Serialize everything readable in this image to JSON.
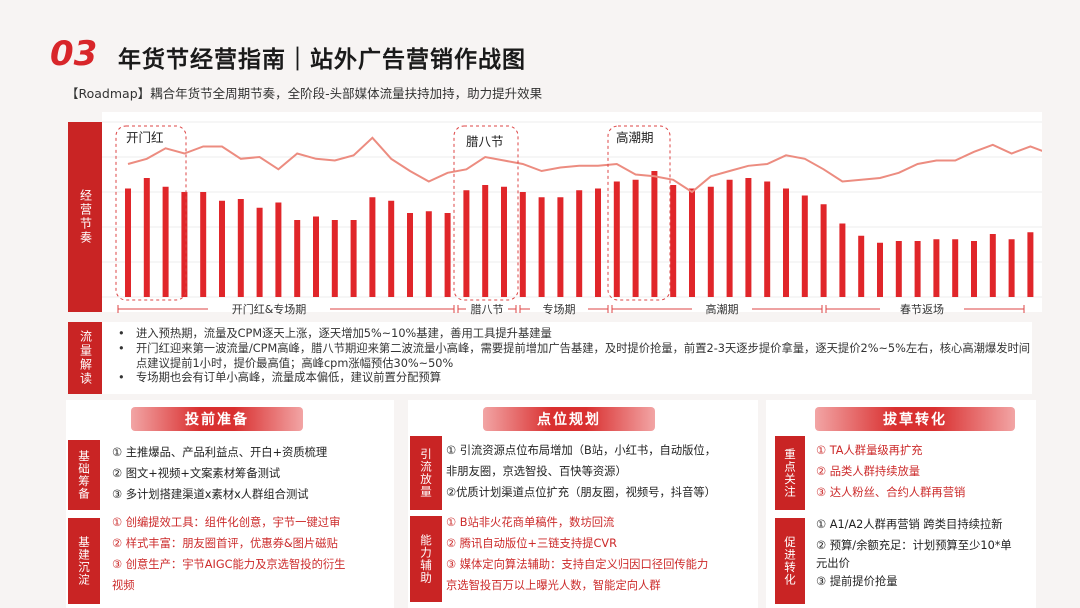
{
  "header": {
    "number": "03",
    "title": "年货节经营指南｜站外广告营销作战图",
    "subtitle": "【Roadmap】耦合年货节全周期节奏，全阶段-头部媒体流量扶持加持，助力提升效果"
  },
  "chart": {
    "side_label": "经营节奏",
    "highlights": [
      "开门红",
      "腊八节",
      "高潮期"
    ],
    "phases": [
      "开门红&专场期",
      "腊八节",
      "专场期",
      "高潮期",
      "春节返场"
    ]
  },
  "chart_data": {
    "type": "bar",
    "bar_color": "#e0262a",
    "line_color": "#ec8c80",
    "values": [
      62,
      68,
      63,
      60,
      60,
      55,
      56,
      51,
      54,
      44,
      46,
      44,
      44,
      57,
      55,
      48,
      49,
      48,
      61,
      64,
      63,
      60,
      57,
      57,
      61,
      62,
      66,
      67,
      72,
      64,
      62,
      63,
      67,
      68,
      66,
      62,
      58,
      53,
      42,
      35,
      31,
      32,
      32,
      33,
      33,
      32,
      36,
      33,
      37,
      42
    ],
    "line": [
      76,
      79,
      85,
      82,
      86,
      86,
      79,
      80,
      73,
      82,
      79,
      78,
      81,
      91,
      79,
      72,
      66,
      71,
      73,
      80,
      78,
      76,
      72,
      74,
      75,
      75,
      76,
      70,
      69,
      67,
      60,
      69,
      72,
      75,
      76,
      81,
      79,
      73,
      66,
      67,
      68,
      71,
      76,
      78,
      78,
      83,
      87,
      82,
      86,
      82
    ],
    "ylim": [
      0,
      100
    ]
  },
  "interpretation": {
    "side_label": "流量解读",
    "bullets": [
      "进入预热期，流量及CPM逐天上涨，逐天增加5%~10%基建，善用工具提升基建量",
      "开门红迎来第一波流量/CPM高峰，腊八节期迎来第二波流量小高峰，需要提前增加广告基建，及时提价抢量，前置2-3天逐步提价拿量，逐天提价2%~5%左右，核心高潮爆发时间点建议提前1小时，提价最高值；高峰cpm涨幅预估30%~50%",
      "专场期也会有订单小高峰，流量成本偏低，建议前置分配预算"
    ]
  },
  "panels": [
    {
      "title": "投前准备",
      "groups": [
        {
          "side": "基础筹备",
          "red": false,
          "items": [
            "① 主推爆品、产品利益点、开白+资质梳理",
            "② 图文+视频+文案素材筹备测试",
            "③ 多计划搭建渠道x素材x人群组合测试"
          ]
        },
        {
          "side": "基建沉淀",
          "red": true,
          "items": [
            "①  创编提效工具：组件化创意，宇节一键过审",
            "②  样式丰富：朋友圈首评，优惠券&图片磁贴",
            "③  创意生产：宇节AIGC能力及京选智投的衍生",
            "视频"
          ]
        }
      ]
    },
    {
      "title": "点位规划",
      "groups": [
        {
          "side": "引流放量",
          "red": false,
          "items": [
            "① 引流资源点位布局增加（B站，小红书，自动版位，",
            "非朋友圈，京选智投、百快等资源）",
            "②优质计划渠道点位扩充（朋友圈，视频号，抖音等）"
          ]
        },
        {
          "side": "能力辅助",
          "red": true,
          "items": [
            "① B站非火花商单稿件，数坊回流",
            "② 腾讯自动版位+三链支持提CVR",
            "③ 媒体定向算法辅助：支持自定义归因口径回传能力",
            "京选智投百万以上曝光人数，智能定向人群"
          ]
        }
      ]
    },
    {
      "title": "拔草转化",
      "groups": [
        {
          "side": "重点关注",
          "red": true,
          "items": [
            "①   TA人群量级再扩充",
            "②   品类人群持续放量",
            "③   达人粉丝、合约人群再营销"
          ]
        },
        {
          "side": "促进转化",
          "red": false,
          "items": [
            "①   A1/A2人群再营销 跨类目持续拉新",
            "②   预算/余额充足：计划预算至少10*单",
            "元出价",
            "③ 提前提价抢量"
          ]
        }
      ]
    }
  ]
}
